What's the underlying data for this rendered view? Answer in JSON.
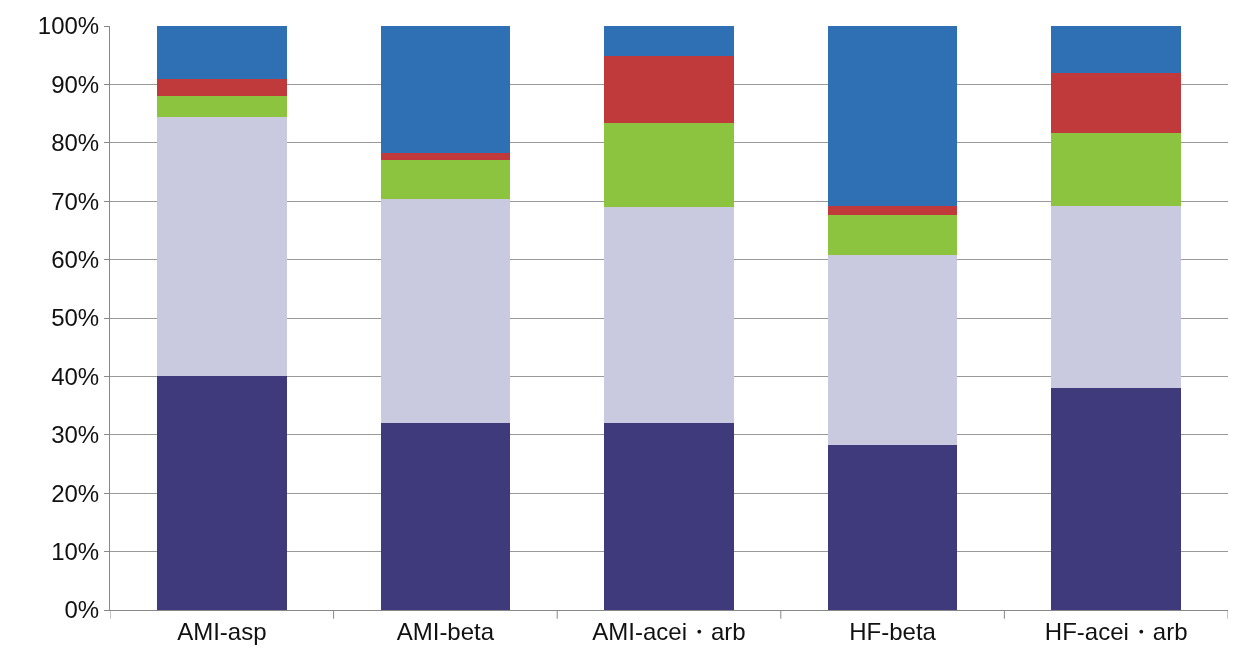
{
  "chart_data": {
    "type": "bar",
    "stacked": true,
    "categories": [
      "AMI-asp",
      "AMI-beta",
      "AMI-acei・arb",
      "HF-beta",
      "HF-acei・arb"
    ],
    "series": [
      {
        "color": "#3f3a7c",
        "values": [
          40,
          32,
          32,
          28.3,
          38
        ]
      },
      {
        "color": "#c9c9df",
        "values": [
          44.4,
          38.3,
          37,
          32.5,
          31.2
        ]
      },
      {
        "color": "#8cc43f",
        "values": [
          3.7,
          6.7,
          14.4,
          6.8,
          12.5
        ]
      },
      {
        "color": "#c0393b",
        "values": [
          2.9,
          1.3,
          11.5,
          1.6,
          10.2
        ]
      },
      {
        "color": "#2f70b5",
        "values": [
          9,
          21.7,
          5.1,
          30.8,
          8.1
        ]
      }
    ],
    "ylim": [
      0,
      100
    ],
    "yticks": [
      {
        "value": 0,
        "label": "0%"
      },
      {
        "value": 10,
        "label": "10%"
      },
      {
        "value": 20,
        "label": "20%"
      },
      {
        "value": 30,
        "label": "30%"
      },
      {
        "value": 40,
        "label": "40%"
      },
      {
        "value": 50,
        "label": "50%"
      },
      {
        "value": 60,
        "label": "60%"
      },
      {
        "value": 70,
        "label": "70%"
      },
      {
        "value": 80,
        "label": "80%"
      },
      {
        "value": 90,
        "label": "90%"
      },
      {
        "value": 100,
        "label": "100%"
      }
    ],
    "grid": "y"
  }
}
